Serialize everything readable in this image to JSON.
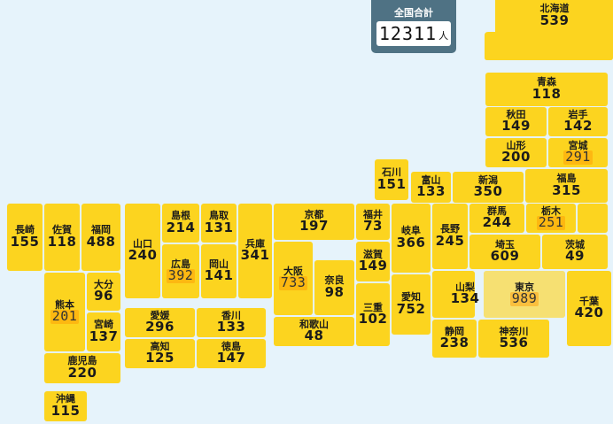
{
  "total": {
    "label": "全国合計",
    "count": "12311",
    "unit": "人"
  },
  "prefectures": [
    {
      "key": "hokkaido",
      "name": "北海道",
      "count": "539"
    },
    {
      "key": "aomori",
      "name": "青森",
      "count": "118"
    },
    {
      "key": "akita",
      "name": "秋田",
      "count": "149"
    },
    {
      "key": "iwate",
      "name": "岩手",
      "count": "142"
    },
    {
      "key": "yamagata",
      "name": "山形",
      "count": "200"
    },
    {
      "key": "miyagi",
      "name": "宮城",
      "count": "291"
    },
    {
      "key": "ishikawa",
      "name": "石川",
      "count": "151"
    },
    {
      "key": "toyama",
      "name": "富山",
      "count": "133"
    },
    {
      "key": "niigata",
      "name": "新潟",
      "count": "350"
    },
    {
      "key": "fukushima",
      "name": "福島",
      "count": "315"
    },
    {
      "key": "nagasaki",
      "name": "長崎",
      "count": "155"
    },
    {
      "key": "saga",
      "name": "佐賀",
      "count": "118"
    },
    {
      "key": "fukuoka",
      "name": "福岡",
      "count": "488"
    },
    {
      "key": "yamaguchi",
      "name": "山口",
      "count": "240"
    },
    {
      "key": "shimane",
      "name": "島根",
      "count": "214"
    },
    {
      "key": "tottori",
      "name": "鳥取",
      "count": "131"
    },
    {
      "key": "hyogo",
      "name": "兵庫",
      "count": "341"
    },
    {
      "key": "kyoto",
      "name": "京都",
      "count": "197"
    },
    {
      "key": "fukui",
      "name": "福井",
      "count": "73"
    },
    {
      "key": "gifu",
      "name": "岐阜",
      "count": "366"
    },
    {
      "key": "nagano",
      "name": "長野",
      "count": "245"
    },
    {
      "key": "gunma",
      "name": "群馬",
      "count": "244"
    },
    {
      "key": "tochigi",
      "name": "栃木",
      "count": "251"
    },
    {
      "key": "hiroshima",
      "name": "広島",
      "count": "392"
    },
    {
      "key": "okayama",
      "name": "岡山",
      "count": "141"
    },
    {
      "key": "osaka",
      "name": "大阪",
      "count": "733"
    },
    {
      "key": "shiga",
      "name": "滋賀",
      "count": "149"
    },
    {
      "key": "saitama",
      "name": "埼玉",
      "count": "609"
    },
    {
      "key": "ibaraki",
      "name": "茨城",
      "count": "49"
    },
    {
      "key": "nara",
      "name": "奈良",
      "count": "98"
    },
    {
      "key": "kumamoto",
      "name": "熊本",
      "count": "201"
    },
    {
      "key": "oita",
      "name": "大分",
      "count": "96"
    },
    {
      "key": "yamanashi",
      "name": "山梨",
      "count": "134"
    },
    {
      "key": "tokyo",
      "name": "東京",
      "count": "989"
    },
    {
      "key": "chiba",
      "name": "千葉",
      "count": "420"
    },
    {
      "key": "mie",
      "name": "三重",
      "count": "102"
    },
    {
      "key": "aichi",
      "name": "愛知",
      "count": "752"
    },
    {
      "key": "miyazaki",
      "name": "宮崎",
      "count": "137"
    },
    {
      "key": "ehime",
      "name": "愛媛",
      "count": "296"
    },
    {
      "key": "kagawa",
      "name": "香川",
      "count": "133"
    },
    {
      "key": "wakayama",
      "name": "和歌山",
      "count": "48"
    },
    {
      "key": "kochi",
      "name": "高知",
      "count": "125"
    },
    {
      "key": "tokushima",
      "name": "徳島",
      "count": "147"
    },
    {
      "key": "shizuoka",
      "name": "静岡",
      "count": "238"
    },
    {
      "key": "kanagawa",
      "name": "神奈川",
      "count": "536"
    },
    {
      "key": "kagoshima",
      "name": "鹿児島",
      "count": "220"
    },
    {
      "key": "okinawa",
      "name": "沖縄",
      "count": "115"
    }
  ],
  "colors": {
    "background": "#e6f3fb",
    "tile": "#fcd41f",
    "total_panel": "#4f7284"
  }
}
